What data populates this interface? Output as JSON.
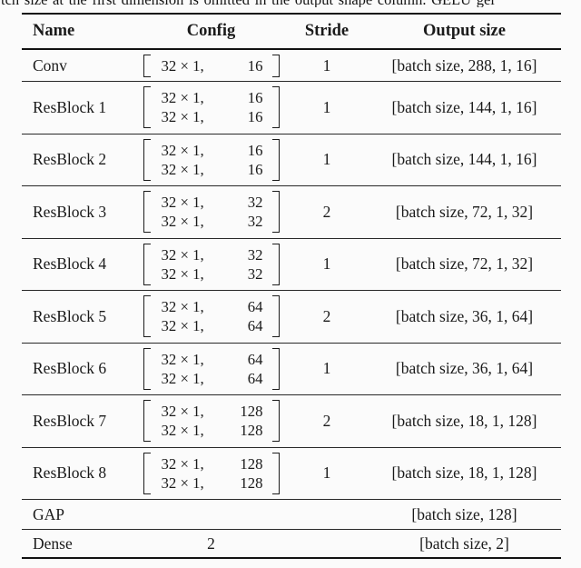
{
  "caption_fragment": "tch size at the first dimension is omitted in the output shape column. GELU gel",
  "table": {
    "headers": [
      "Name",
      "Config",
      "Stride",
      "Output size"
    ],
    "rows": [
      {
        "name": "Conv",
        "config_lines": [
          [
            "32 × 1,",
            "16"
          ]
        ],
        "stride": "1",
        "output": "[batch size, 288, 1, 16]"
      },
      {
        "name": "ResBlock 1",
        "config_lines": [
          [
            "32 × 1,",
            "16"
          ],
          [
            "32 × 1,",
            "16"
          ]
        ],
        "stride": "1",
        "output": "[batch size, 144, 1, 16]"
      },
      {
        "name": "ResBlock 2",
        "config_lines": [
          [
            "32 × 1,",
            "16"
          ],
          [
            "32 × 1,",
            "16"
          ]
        ],
        "stride": "1",
        "output": "[batch size, 144, 1, 16]"
      },
      {
        "name": "ResBlock 3",
        "config_lines": [
          [
            "32 × 1,",
            "32"
          ],
          [
            "32 × 1,",
            "32"
          ]
        ],
        "stride": "2",
        "output": "[batch size, 72, 1, 32]"
      },
      {
        "name": "ResBlock 4",
        "config_lines": [
          [
            "32 × 1,",
            "32"
          ],
          [
            "32 × 1,",
            "32"
          ]
        ],
        "stride": "1",
        "output": "[batch size, 72, 1, 32]"
      },
      {
        "name": "ResBlock 5",
        "config_lines": [
          [
            "32 × 1,",
            "64"
          ],
          [
            "32 × 1,",
            "64"
          ]
        ],
        "stride": "2",
        "output": "[batch size, 36, 1, 64]"
      },
      {
        "name": "ResBlock 6",
        "config_lines": [
          [
            "32 × 1,",
            "64"
          ],
          [
            "32 × 1,",
            "64"
          ]
        ],
        "stride": "1",
        "output": "[batch size, 36, 1, 64]"
      },
      {
        "name": "ResBlock 7",
        "config_lines": [
          [
            "32 × 1,",
            "128"
          ],
          [
            "32 × 1,",
            "128"
          ]
        ],
        "stride": "2",
        "output": "[batch size, 18, 1, 128]"
      },
      {
        "name": "ResBlock 8",
        "config_lines": [
          [
            "32 × 1,",
            "128"
          ],
          [
            "32 × 1,",
            "128"
          ]
        ],
        "stride": "1",
        "output": "[batch size, 18, 1, 128]"
      },
      {
        "name": "GAP",
        "config_text": "",
        "stride": "",
        "output": "[batch size, 128]"
      },
      {
        "name": "Dense",
        "config_text": "2",
        "stride": "",
        "output": "[batch size, 2]"
      }
    ]
  }
}
